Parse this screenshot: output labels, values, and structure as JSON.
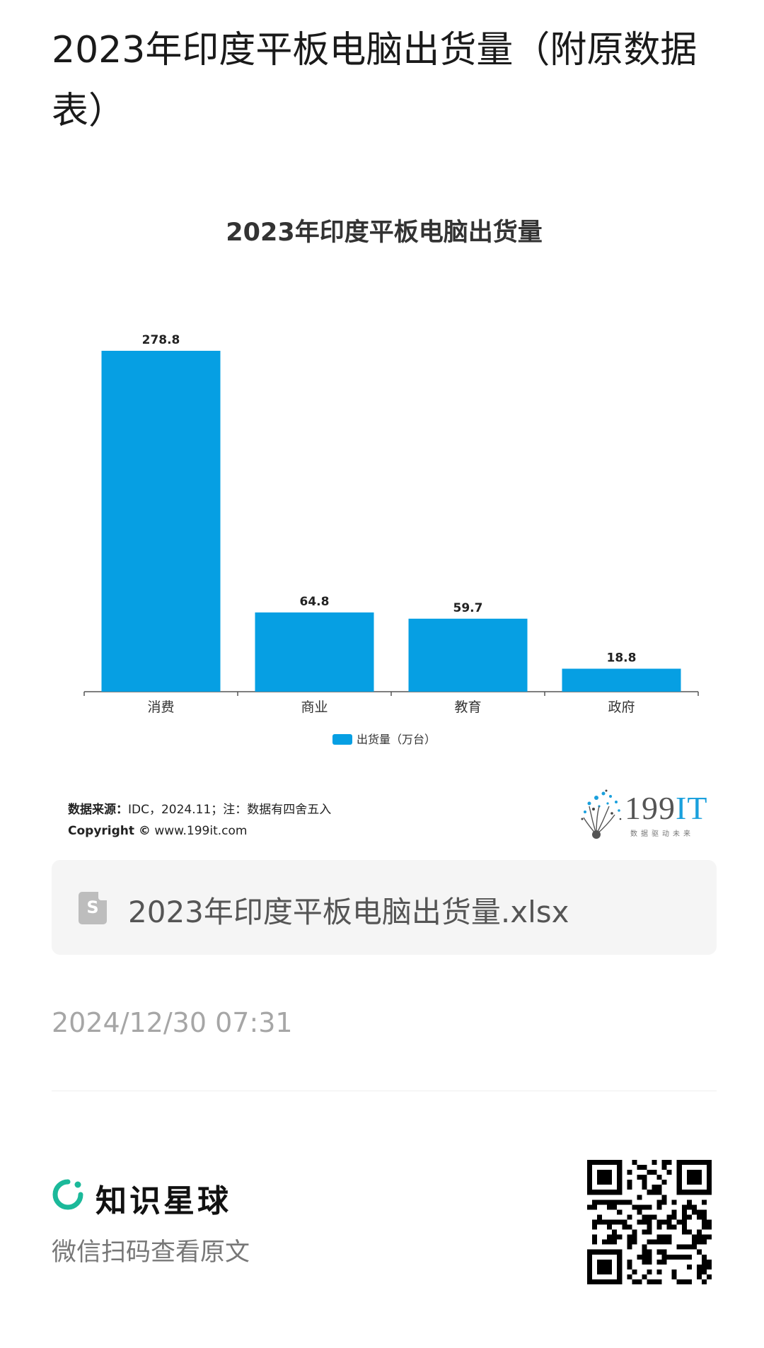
{
  "page": {
    "title": "2023年印度平板电脑出货量（附原数据表）"
  },
  "chart_data": {
    "type": "bar",
    "title": "2023年印度平板电脑出货量",
    "categories": [
      "消费",
      "商业",
      "教育",
      "政府"
    ],
    "series": [
      {
        "name": "出货量（万台）",
        "values": [
          278.8,
          64.8,
          59.7,
          18.8
        ],
        "color": "#069fe3"
      }
    ],
    "data_labels": [
      "278.8",
      "64.8",
      "59.7",
      "18.8"
    ],
    "ylim": [
      0,
      278.8
    ],
    "grid": false,
    "legend_position": "bottom"
  },
  "source": {
    "label": "数据来源：",
    "text": "IDC，2024.11；注：数据有四舍五入",
    "copyright_label": "Copyright ©",
    "copyright_url": "www.199it.com"
  },
  "logo": {
    "brand": "199",
    "brand_accent": "IT",
    "tagline": "数据驱动未来"
  },
  "file": {
    "name": "2023年印度平板电脑出货量.xlsx",
    "icon": "spreadsheet-file-icon",
    "icon_letter": "S"
  },
  "timestamp": "2024/12/30 07:31",
  "footer": {
    "brand_name": "知识星球",
    "scan_text": "微信扫码查看原文",
    "accent_color": "#1bb99a"
  }
}
